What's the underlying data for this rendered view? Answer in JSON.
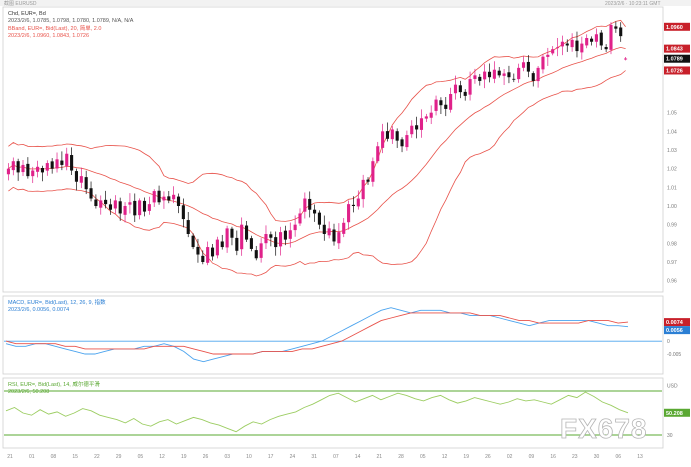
{
  "top_bar": {
    "left_label": "截图 EURUSD",
    "right_label": "2023/2/6 · 10:23:11 GMT"
  },
  "main_panel": {
    "header_line1": "Chd, EUR=, Bd",
    "header_line1_values": "2023/2/6, 1.0785, 1.0798, 1.0780, 1.0789, N/A, N/A",
    "header_line2": "BBand, EUR=, Bid(Last), 20, 简单, 2.0",
    "header_line3": "2023/2/6, 1.0960, 1.0843, 1.0726",
    "price_tags": [
      {
        "label": "1.0960",
        "color": "#c8202a",
        "text_color": "#ffffff"
      },
      {
        "label": "1.0843",
        "color": "#c8202a",
        "text_color": "#ffffff"
      },
      {
        "label": "1.0789",
        "color": "#111111",
        "text_color": "#ffffff"
      },
      {
        "label": "1.0726",
        "color": "#c8202a",
        "text_color": "#ffffff"
      }
    ]
  },
  "macd_panel": {
    "header_line1": "MACD, EUR=, Bid(Last), 12, 26, 9, 指数",
    "header_line2": "2023/2/6, 0.0056, 0.0074",
    "tags": [
      {
        "label": "0.0074",
        "color": "#c8202a"
      },
      {
        "label": "0.0056",
        "color": "#2b7fd4"
      }
    ],
    "axis_labels": [
      "0.005",
      "0",
      "-0.005"
    ]
  },
  "rsi_panel": {
    "header_line1": "RSI, EUR=, Bid(Last), 14, 威尔德平滑",
    "header_line2": "2023/2/6, 50.208",
    "tag": {
      "label": "50.208",
      "color": "#5aa832"
    },
    "axis_labels": [
      "USD",
      "50",
      "30"
    ]
  },
  "x_axis_labels": [
    "21",
    "01",
    "08",
    "15",
    "22",
    "29",
    "05",
    "12",
    "19",
    "26",
    "03",
    "10",
    "17",
    "24",
    "31",
    "07",
    "14",
    "21",
    "28",
    "05",
    "12",
    "19",
    "26",
    "02",
    "09",
    "16",
    "23",
    "30",
    "06",
    "13"
  ],
  "watermark": "FX678",
  "colors": {
    "up_candle": "#e0218a",
    "down_candle": "#111111",
    "bollinger": "#e8524a",
    "macd_line": "#4aa3ee",
    "signal_line": "#e8524a",
    "zero_line": "#4aa3ee",
    "rsi_line": "#9ccd62",
    "rsi_bounds": "#5aa832"
  },
  "chart_data": [
    {
      "type": "candlestick",
      "title": "Chd, EUR=, Bd",
      "series_name": "EUR=",
      "overlay": "Bollinger Bands (20, 2.0)",
      "ylim": [
        0.955,
        1.105
      ],
      "y_ticks": [
        1.05,
        1.04,
        1.03,
        1.02,
        1.01,
        1.0,
        0.99,
        0.98,
        0.97,
        0.96
      ],
      "last": {
        "open": 1.0785,
        "high": 1.0798,
        "low": 1.078,
        "close": 1.0789
      },
      "bollinger_last": {
        "upper": 1.096,
        "middle": 1.0843,
        "lower": 1.0726
      },
      "closes": [
        1.02,
        1.024,
        1.018,
        1.022,
        1.016,
        1.019,
        1.021,
        1.018,
        1.023,
        1.02,
        1.025,
        1.022,
        1.028,
        1.019,
        1.013,
        1.016,
        1.009,
        1.004,
        1.0,
        1.003,
        1.001,
        0.998,
        1.003,
        0.996,
        1.0,
        1.002,
        0.995,
        1.003,
        0.997,
        1.001,
        1.008,
        1.002,
        1.005,
        1.003,
        1.006,
        1.0,
        0.993,
        0.985,
        0.978,
        0.974,
        0.97,
        0.978,
        0.973,
        0.982,
        0.978,
        0.988,
        0.983,
        0.976,
        0.99,
        0.982,
        0.977,
        0.972,
        0.98,
        0.985,
        0.983,
        0.978,
        0.986,
        0.982,
        0.987,
        0.99,
        0.996,
        1.004,
        0.998,
        0.996,
        0.99,
        0.985,
        0.988,
        0.981,
        0.986,
        0.991,
        1.001,
        1.0,
        1.004,
        1.014,
        1.013,
        1.024,
        1.032,
        1.04,
        1.036,
        1.041,
        1.035,
        1.032,
        1.038,
        1.043,
        1.041,
        1.047,
        1.048,
        1.05,
        1.057,
        1.054,
        1.052,
        1.06,
        1.065,
        1.061,
        1.059,
        1.068,
        1.07,
        1.067,
        1.072,
        1.069,
        1.073,
        1.07,
        1.071,
        1.069,
        1.068,
        1.074,
        1.077,
        1.072,
        1.067,
        1.074,
        1.08,
        1.081,
        1.084,
        1.085,
        1.088,
        1.086,
        1.089,
        1.083,
        1.087,
        1.09,
        1.088,
        1.092,
        1.086,
        1.084,
        1.097,
        1.095,
        1.091,
        1.079
      ]
    },
    {
      "type": "line",
      "title": "MACD, EUR=, Bid(Last), 12, 26, 9, 指数",
      "last": {
        "macd": 0.0056,
        "signal": 0.0074
      },
      "ylim": [
        -0.012,
        0.016
      ],
      "series": [
        {
          "name": "MACD",
          "values": [
            -0.001,
            -0.002,
            -0.002,
            -0.001,
            -0.001,
            -0.002,
            -0.003,
            -0.004,
            -0.005,
            -0.005,
            -0.004,
            -0.003,
            -0.003,
            -0.003,
            -0.002,
            -0.002,
            -0.001,
            -0.002,
            -0.004,
            -0.007,
            -0.008,
            -0.007,
            -0.006,
            -0.005,
            -0.005,
            -0.005,
            -0.004,
            -0.004,
            -0.004,
            -0.003,
            -0.002,
            -0.001,
            0.0,
            0.002,
            0.004,
            0.006,
            0.008,
            0.01,
            0.012,
            0.013,
            0.012,
            0.011,
            0.012,
            0.012,
            0.012,
            0.011,
            0.011,
            0.01,
            0.01,
            0.01,
            0.009,
            0.008,
            0.007,
            0.006,
            0.007,
            0.008,
            0.008,
            0.008,
            0.008,
            0.008,
            0.007,
            0.006,
            0.006,
            0.0056
          ]
        },
        {
          "name": "Signal",
          "values": [
            0.0,
            -0.001,
            -0.001,
            -0.001,
            -0.001,
            -0.001,
            -0.002,
            -0.002,
            -0.003,
            -0.003,
            -0.003,
            -0.003,
            -0.003,
            -0.003,
            -0.003,
            -0.002,
            -0.002,
            -0.002,
            -0.002,
            -0.003,
            -0.004,
            -0.005,
            -0.005,
            -0.005,
            -0.005,
            -0.005,
            -0.004,
            -0.004,
            -0.004,
            -0.004,
            -0.003,
            -0.003,
            -0.002,
            -0.001,
            0.0,
            0.002,
            0.004,
            0.006,
            0.008,
            0.009,
            0.01,
            0.011,
            0.011,
            0.011,
            0.011,
            0.011,
            0.011,
            0.011,
            0.01,
            0.01,
            0.01,
            0.009,
            0.008,
            0.008,
            0.007,
            0.007,
            0.007,
            0.007,
            0.007,
            0.008,
            0.008,
            0.008,
            0.007,
            0.0074
          ]
        }
      ]
    },
    {
      "type": "line",
      "title": "RSI, EUR=, Bid(Last), 14, 威尔德平滑",
      "last": {
        "rsi": 50.208
      },
      "ylim": [
        20,
        80
      ],
      "bounds": [
        70,
        30
      ],
      "series": [
        {
          "name": "RSI",
          "values": [
            52,
            55,
            50,
            48,
            53,
            49,
            51,
            47,
            50,
            54,
            52,
            48,
            46,
            44,
            41,
            45,
            40,
            38,
            42,
            44,
            40,
            43,
            46,
            44,
            41,
            39,
            36,
            33,
            38,
            42,
            40,
            44,
            47,
            49,
            51,
            55,
            58,
            62,
            66,
            68,
            64,
            60,
            63,
            66,
            62,
            65,
            68,
            66,
            63,
            61,
            64,
            66,
            62,
            59,
            61,
            64,
            62,
            60,
            58,
            60,
            63,
            61,
            62,
            60,
            58,
            62,
            66,
            64,
            69,
            65,
            60,
            57,
            53,
            50.208
          ]
        }
      ]
    }
  ]
}
